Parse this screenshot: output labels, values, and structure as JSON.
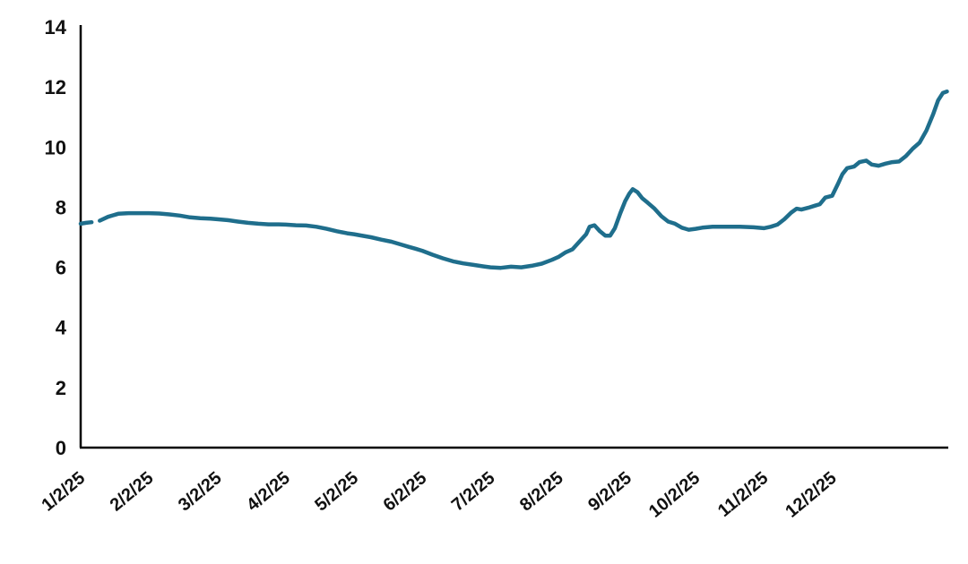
{
  "chart_data": {
    "type": "line",
    "title": "",
    "xlabel": "",
    "ylabel": "",
    "line_color": "#1f6e8c",
    "axis_color": "#000000",
    "ylim": [
      0,
      14
    ],
    "yticks": [
      0,
      2,
      4,
      6,
      8,
      10,
      12,
      14
    ],
    "x_tick_labels": [
      "1/2/25",
      "2/2/25",
      "3/2/25",
      "4/2/25",
      "5/2/25",
      "6/2/25",
      "7/2/25",
      "8/2/25",
      "9/2/25",
      "10/2/25",
      "11/2/25",
      "12/2/25"
    ],
    "x_months_max": 12.7,
    "legend": null,
    "grid": false,
    "segments": [
      [
        [
          0.0,
          7.45
        ],
        [
          0.08,
          7.48
        ],
        [
          0.16,
          7.5
        ]
      ],
      [
        [
          0.28,
          7.55
        ],
        [
          0.4,
          7.68
        ],
        [
          0.55,
          7.78
        ],
        [
          0.7,
          7.8
        ],
        [
          0.85,
          7.8
        ],
        [
          1.0,
          7.8
        ],
        [
          1.15,
          7.79
        ],
        [
          1.3,
          7.76
        ],
        [
          1.45,
          7.72
        ],
        [
          1.6,
          7.66
        ],
        [
          1.75,
          7.63
        ],
        [
          1.9,
          7.62
        ],
        [
          2.0,
          7.6
        ],
        [
          2.15,
          7.57
        ],
        [
          2.3,
          7.52
        ],
        [
          2.45,
          7.48
        ],
        [
          2.6,
          7.45
        ],
        [
          2.75,
          7.43
        ],
        [
          2.9,
          7.43
        ],
        [
          3.0,
          7.42
        ],
        [
          3.15,
          7.4
        ],
        [
          3.3,
          7.39
        ],
        [
          3.45,
          7.35
        ],
        [
          3.6,
          7.28
        ],
        [
          3.75,
          7.2
        ],
        [
          3.9,
          7.13
        ],
        [
          4.0,
          7.1
        ],
        [
          4.1,
          7.06
        ],
        [
          4.25,
          7.0
        ],
        [
          4.4,
          6.92
        ],
        [
          4.55,
          6.85
        ],
        [
          4.7,
          6.75
        ],
        [
          4.8,
          6.68
        ],
        [
          4.9,
          6.62
        ],
        [
          5.0,
          6.55
        ],
        [
          5.15,
          6.42
        ],
        [
          5.3,
          6.3
        ],
        [
          5.45,
          6.2
        ],
        [
          5.6,
          6.13
        ],
        [
          5.75,
          6.08
        ],
        [
          5.9,
          6.03
        ],
        [
          6.0,
          6.0
        ],
        [
          6.15,
          5.98
        ],
        [
          6.3,
          6.02
        ],
        [
          6.45,
          6.0
        ],
        [
          6.6,
          6.05
        ],
        [
          6.75,
          6.12
        ],
        [
          6.9,
          6.25
        ],
        [
          7.0,
          6.35
        ],
        [
          7.1,
          6.5
        ],
        [
          7.2,
          6.6
        ],
        [
          7.3,
          6.85
        ],
        [
          7.4,
          7.1
        ],
        [
          7.45,
          7.35
        ],
        [
          7.52,
          7.4
        ],
        [
          7.6,
          7.2
        ],
        [
          7.68,
          7.05
        ],
        [
          7.75,
          7.05
        ],
        [
          7.82,
          7.3
        ],
        [
          7.9,
          7.8
        ],
        [
          7.97,
          8.2
        ],
        [
          8.03,
          8.45
        ],
        [
          8.08,
          8.6
        ],
        [
          8.15,
          8.5
        ],
        [
          8.22,
          8.3
        ],
        [
          8.3,
          8.15
        ],
        [
          8.4,
          7.95
        ],
        [
          8.5,
          7.7
        ],
        [
          8.6,
          7.52
        ],
        [
          8.7,
          7.45
        ],
        [
          8.8,
          7.32
        ],
        [
          8.9,
          7.25
        ],
        [
          9.0,
          7.28
        ],
        [
          9.1,
          7.32
        ],
        [
          9.25,
          7.35
        ],
        [
          9.45,
          7.35
        ],
        [
          9.65,
          7.35
        ],
        [
          9.85,
          7.33
        ],
        [
          10.0,
          7.3
        ],
        [
          10.1,
          7.35
        ],
        [
          10.2,
          7.42
        ],
        [
          10.3,
          7.6
        ],
        [
          10.4,
          7.82
        ],
        [
          10.48,
          7.95
        ],
        [
          10.55,
          7.92
        ],
        [
          10.65,
          7.98
        ],
        [
          10.75,
          8.05
        ],
        [
          10.82,
          8.1
        ],
        [
          10.9,
          8.32
        ],
        [
          11.0,
          8.38
        ],
        [
          11.08,
          8.75
        ],
        [
          11.15,
          9.1
        ],
        [
          11.22,
          9.3
        ],
        [
          11.32,
          9.35
        ],
        [
          11.4,
          9.5
        ],
        [
          11.5,
          9.55
        ],
        [
          11.58,
          9.42
        ],
        [
          11.68,
          9.38
        ],
        [
          11.78,
          9.45
        ],
        [
          11.88,
          9.5
        ],
        [
          11.98,
          9.52
        ],
        [
          12.08,
          9.7
        ],
        [
          12.18,
          9.95
        ],
        [
          12.28,
          10.15
        ],
        [
          12.38,
          10.55
        ],
        [
          12.48,
          11.1
        ],
        [
          12.55,
          11.55
        ],
        [
          12.62,
          11.8
        ],
        [
          12.68,
          11.85
        ]
      ]
    ]
  }
}
